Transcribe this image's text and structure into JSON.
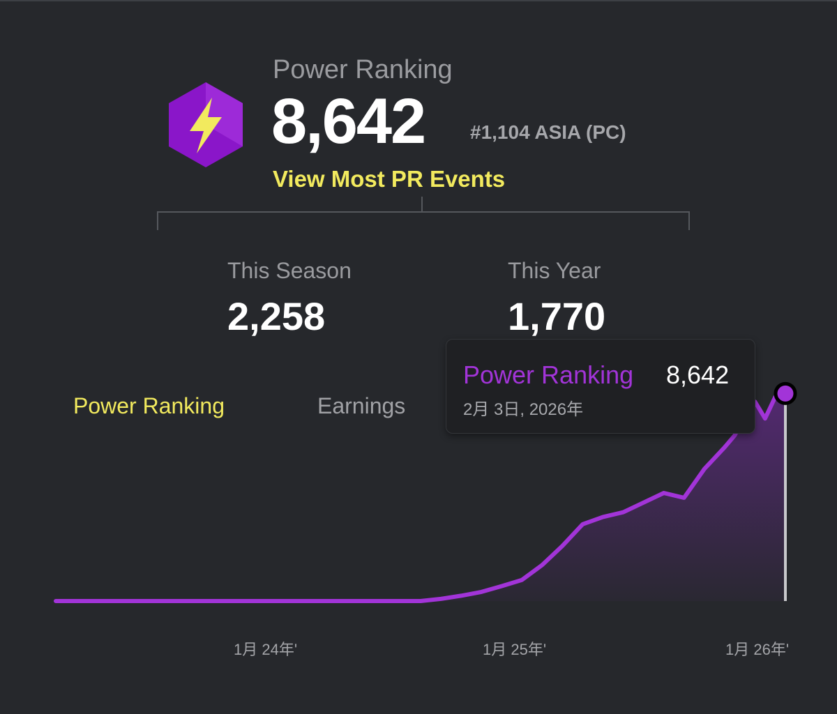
{
  "power_ranking": {
    "title": "Power Ranking",
    "value": "8,642",
    "rank": "#1,104 ASIA (PC)",
    "link": "View Most PR Events",
    "icon": "lightning-hexagon-icon"
  },
  "stats": {
    "season": {
      "label": "This Season",
      "value": "2,258"
    },
    "year": {
      "label": "This Year",
      "value": "1,770"
    }
  },
  "tabs": [
    {
      "label": "Power Ranking",
      "active": true
    },
    {
      "label": "Earnings",
      "active": false
    }
  ],
  "tooltip": {
    "series": "Power Ranking",
    "value": "8,642",
    "date": "2月 3日, 2026年"
  },
  "colors": {
    "accent_yellow": "#f2ea5e",
    "series_purple": "#a234d8",
    "background": "#26282c"
  },
  "chart_data": {
    "type": "area",
    "x_tick_labels": [
      "1月 24年'",
      "1月 25年'",
      "1月 26年'"
    ],
    "x_tick_positions": [
      12,
      24,
      36
    ],
    "series": [
      {
        "name": "Power Ranking",
        "x": [
          0,
          6,
          12,
          18,
          19,
          20,
          21,
          22,
          23,
          24,
          25,
          26,
          27,
          28,
          29,
          30,
          31,
          32,
          33,
          33.5,
          34,
          34.5,
          35,
          35.5,
          36
        ],
        "y": [
          0,
          0,
          0,
          0,
          90,
          220,
          380,
          620,
          880,
          1500,
          2300,
          3200,
          3500,
          3700,
          4100,
          4500,
          4300,
          5500,
          6400,
          6900,
          7700,
          8300,
          7600,
          8500,
          8642
        ]
      }
    ],
    "ylim": [
      0,
      9000
    ],
    "xlim": [
      0,
      36
    ],
    "grid": false,
    "legend": "none"
  }
}
